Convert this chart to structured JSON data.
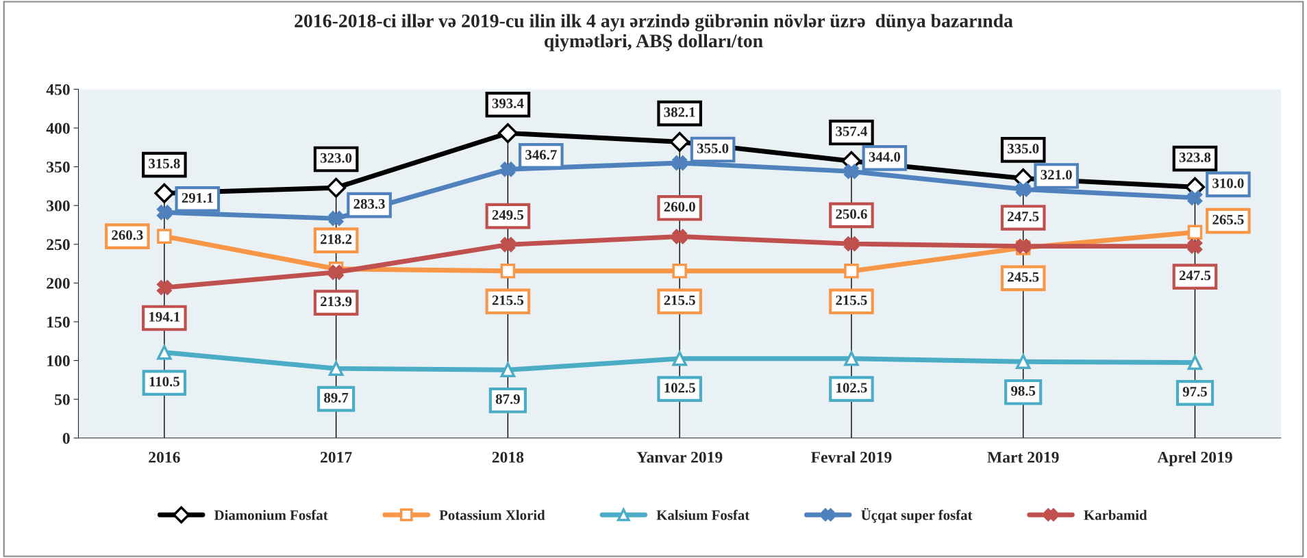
{
  "chart_data": {
    "type": "line",
    "title": "2016-2018-ci illər və 2019-cu ilin ilk 4 ayı ərzində gübrənin növlər üzrə  dünya bazarında\nqiymətləri, ABŞ dolları/ton",
    "categories": [
      "2016",
      "2017",
      "2018",
      "Yanvar 2019",
      "Fevral 2019",
      "Mart 2019",
      "Aprel 2019"
    ],
    "series": [
      {
        "name": "Diamonium Fosfat",
        "color": "#000000",
        "marker": "diamond",
        "values": [
          315.8,
          323.0,
          393.4,
          382.1,
          357.4,
          335.0,
          323.8
        ],
        "value_labels": [
          "315.8",
          "323.0",
          "393.4",
          "382.1",
          "357.4",
          "335.0",
          "323.8"
        ]
      },
      {
        "name": "Potassium Xlorid",
        "color": "#f79646",
        "marker": "square",
        "values": [
          260.3,
          218.2,
          215.5,
          215.5,
          215.5,
          245.5,
          265.5
        ],
        "value_labels": [
          "260.3",
          "218.2",
          "215.5",
          "215.5",
          "215.5",
          "245.5",
          "265.5"
        ]
      },
      {
        "name": "Kalsium Fosfat",
        "color": "#4bacc6",
        "marker": "triangle",
        "values": [
          110.5,
          89.7,
          87.9,
          102.5,
          102.5,
          98.5,
          97.5
        ],
        "value_labels": [
          "110.5",
          "89.7",
          "87.9",
          "102.5",
          "102.5",
          "98.5",
          "97.5"
        ]
      },
      {
        "name": "Üçqat super fosfat",
        "color": "#4f81bd",
        "marker": "cross",
        "values": [
          291.1,
          283.3,
          346.7,
          355.0,
          344.0,
          321.0,
          310.0
        ],
        "value_labels": [
          "291.1",
          "283.3",
          "346.7",
          "355.0",
          "344.0",
          "321.0",
          "310.0"
        ]
      },
      {
        "name": "Karbamid",
        "color": "#c0504d",
        "marker": "cross",
        "values": [
          194.1,
          213.9,
          249.5,
          260.0,
          250.6,
          247.5,
          247.5
        ],
        "value_labels": [
          "194.1",
          "213.9",
          "249.5",
          "260.0",
          "250.6",
          "247.5",
          "247.5"
        ]
      }
    ],
    "ylim": [
      0,
      450
    ],
    "yticks": [
      0,
      50,
      100,
      150,
      200,
      250,
      300,
      350,
      400,
      450
    ],
    "legend": "bottom",
    "grid": "x"
  }
}
